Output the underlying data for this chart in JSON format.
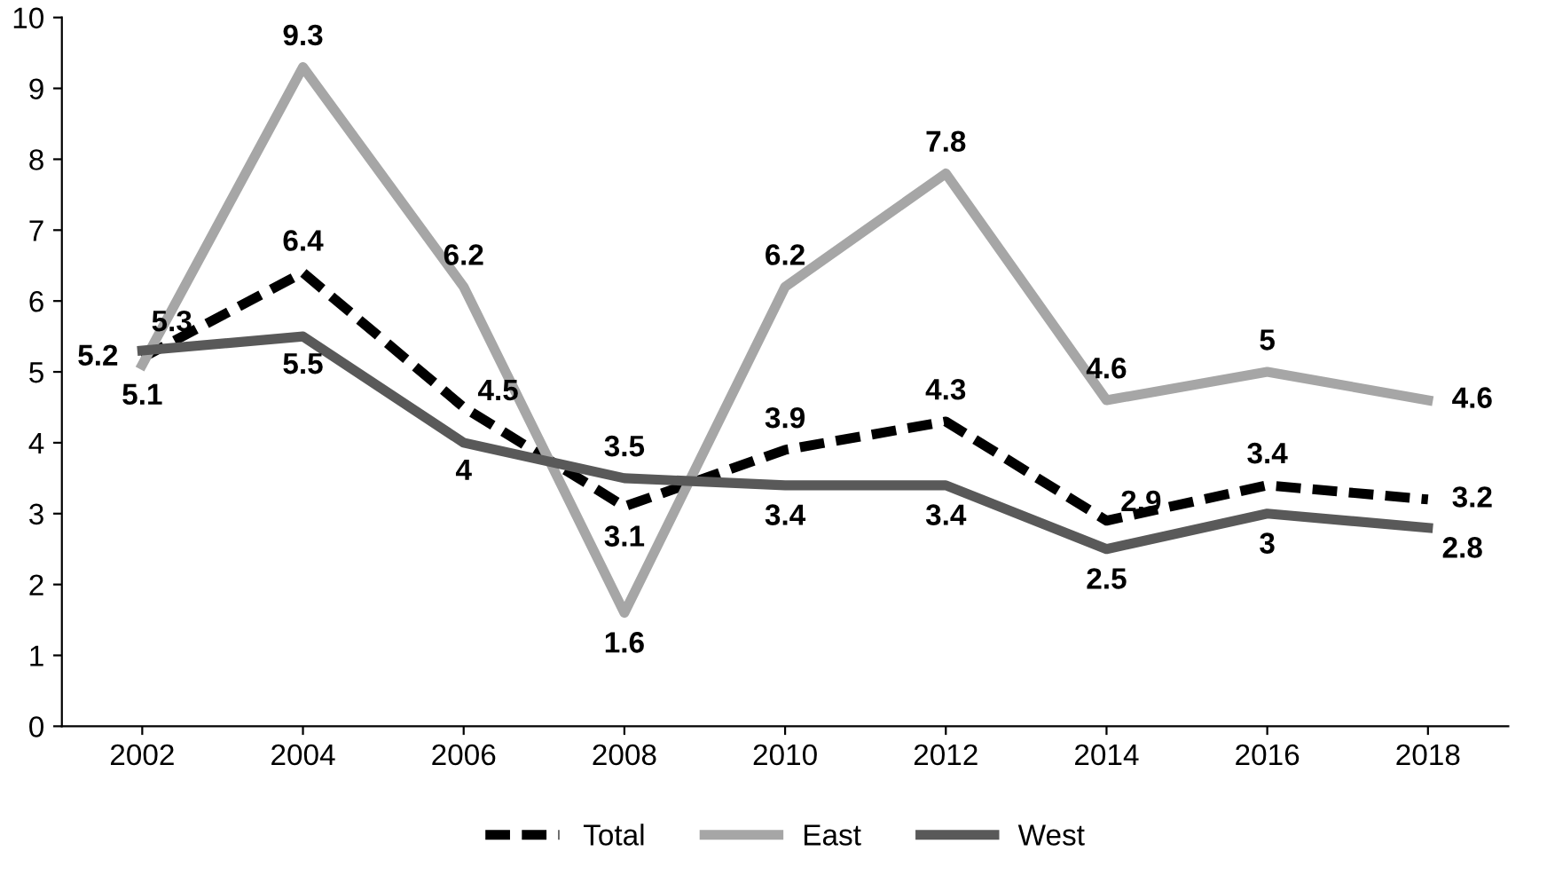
{
  "chart_data": {
    "type": "line",
    "categories": [
      "2002",
      "2004",
      "2006",
      "2008",
      "2010",
      "2012",
      "2014",
      "2016",
      "2018"
    ],
    "series": [
      {
        "name": "Total",
        "color": "#000000",
        "line_style": "dashed",
        "values": [
          5.2,
          6.4,
          4.5,
          3.1,
          3.9,
          4.3,
          2.9,
          3.4,
          3.2
        ]
      },
      {
        "name": "East",
        "color": "#a6a6a6",
        "line_style": "solid",
        "values": [
          5.1,
          9.3,
          6.2,
          1.6,
          6.2,
          7.8,
          4.6,
          5,
          4.6
        ]
      },
      {
        "name": "West",
        "color": "#595959",
        "line_style": "solid",
        "values": [
          5.3,
          5.5,
          4,
          3.5,
          3.4,
          3.4,
          2.5,
          3,
          2.8
        ]
      }
    ],
    "ylim": [
      0,
      10
    ],
    "yticks": [
      0,
      1,
      2,
      3,
      4,
      5,
      6,
      7,
      8,
      9,
      10
    ],
    "grid": false,
    "legend": "bottom",
    "data_labels": true
  }
}
